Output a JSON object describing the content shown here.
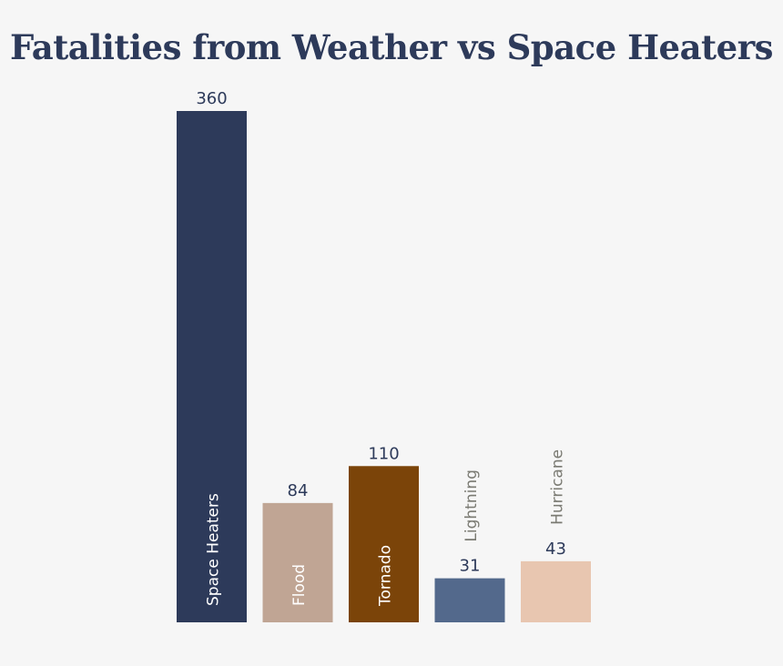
{
  "chart_data": {
    "type": "bar",
    "title": "Fatalities from Weather vs Space Heaters",
    "categories": [
      "Space Heaters",
      "Flood",
      "Tornado",
      "Lightning",
      "Hurricane"
    ],
    "values": [
      360,
      84,
      110,
      31,
      43
    ],
    "colors": [
      "#2d3a5a",
      "#c0a594",
      "#7b4409",
      "#53698c",
      "#e8c6b0"
    ],
    "category_label_colors": [
      "#ffffff",
      "#ffffff",
      "#ffffff",
      "#7a7a72",
      "#7a7a72"
    ],
    "title_color": "#2d3a5a",
    "value_label_color": "#2d3a5a",
    "background": "#f6f6f6",
    "xlabel": "",
    "ylabel": "",
    "ylim": [
      0,
      360
    ],
    "grid": false,
    "legend": "none"
  }
}
